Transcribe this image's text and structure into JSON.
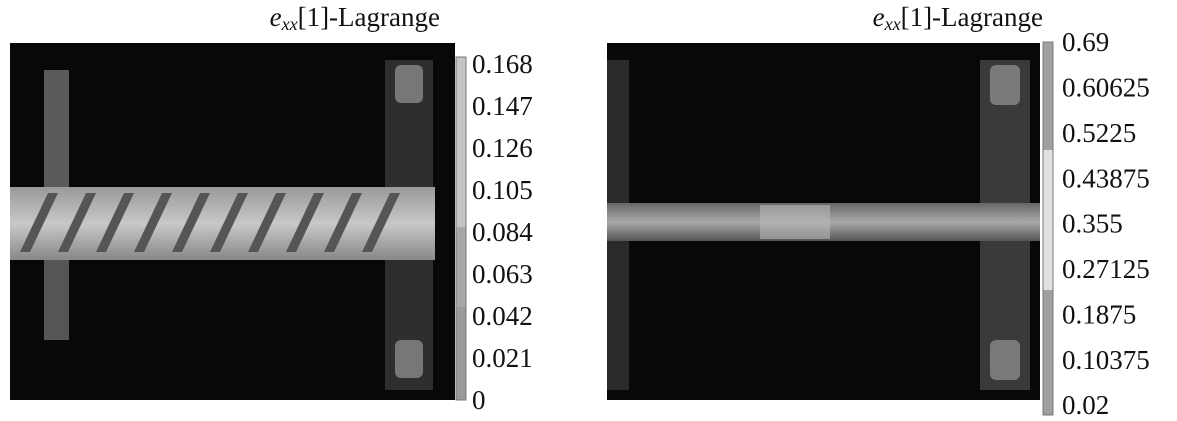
{
  "panels": [
    {
      "title": {
        "symbol": "e",
        "subscript": "xx",
        "rest": "[1]-Lagrange"
      },
      "colorbar_ticks": [
        "0.168",
        "0.147",
        "0.126",
        "0.105",
        "0.084",
        "0.063",
        "0.042",
        "0.021",
        "0"
      ]
    },
    {
      "title": {
        "symbol": "e",
        "subscript": "xx",
        "rest": "[1]-Lagrange"
      },
      "colorbar_ticks": [
        "0.69",
        "0.60625",
        "0.5225",
        "0.43875",
        "0.355",
        "0.27125",
        "0.1875",
        "0.10375",
        "0.02"
      ]
    }
  ]
}
